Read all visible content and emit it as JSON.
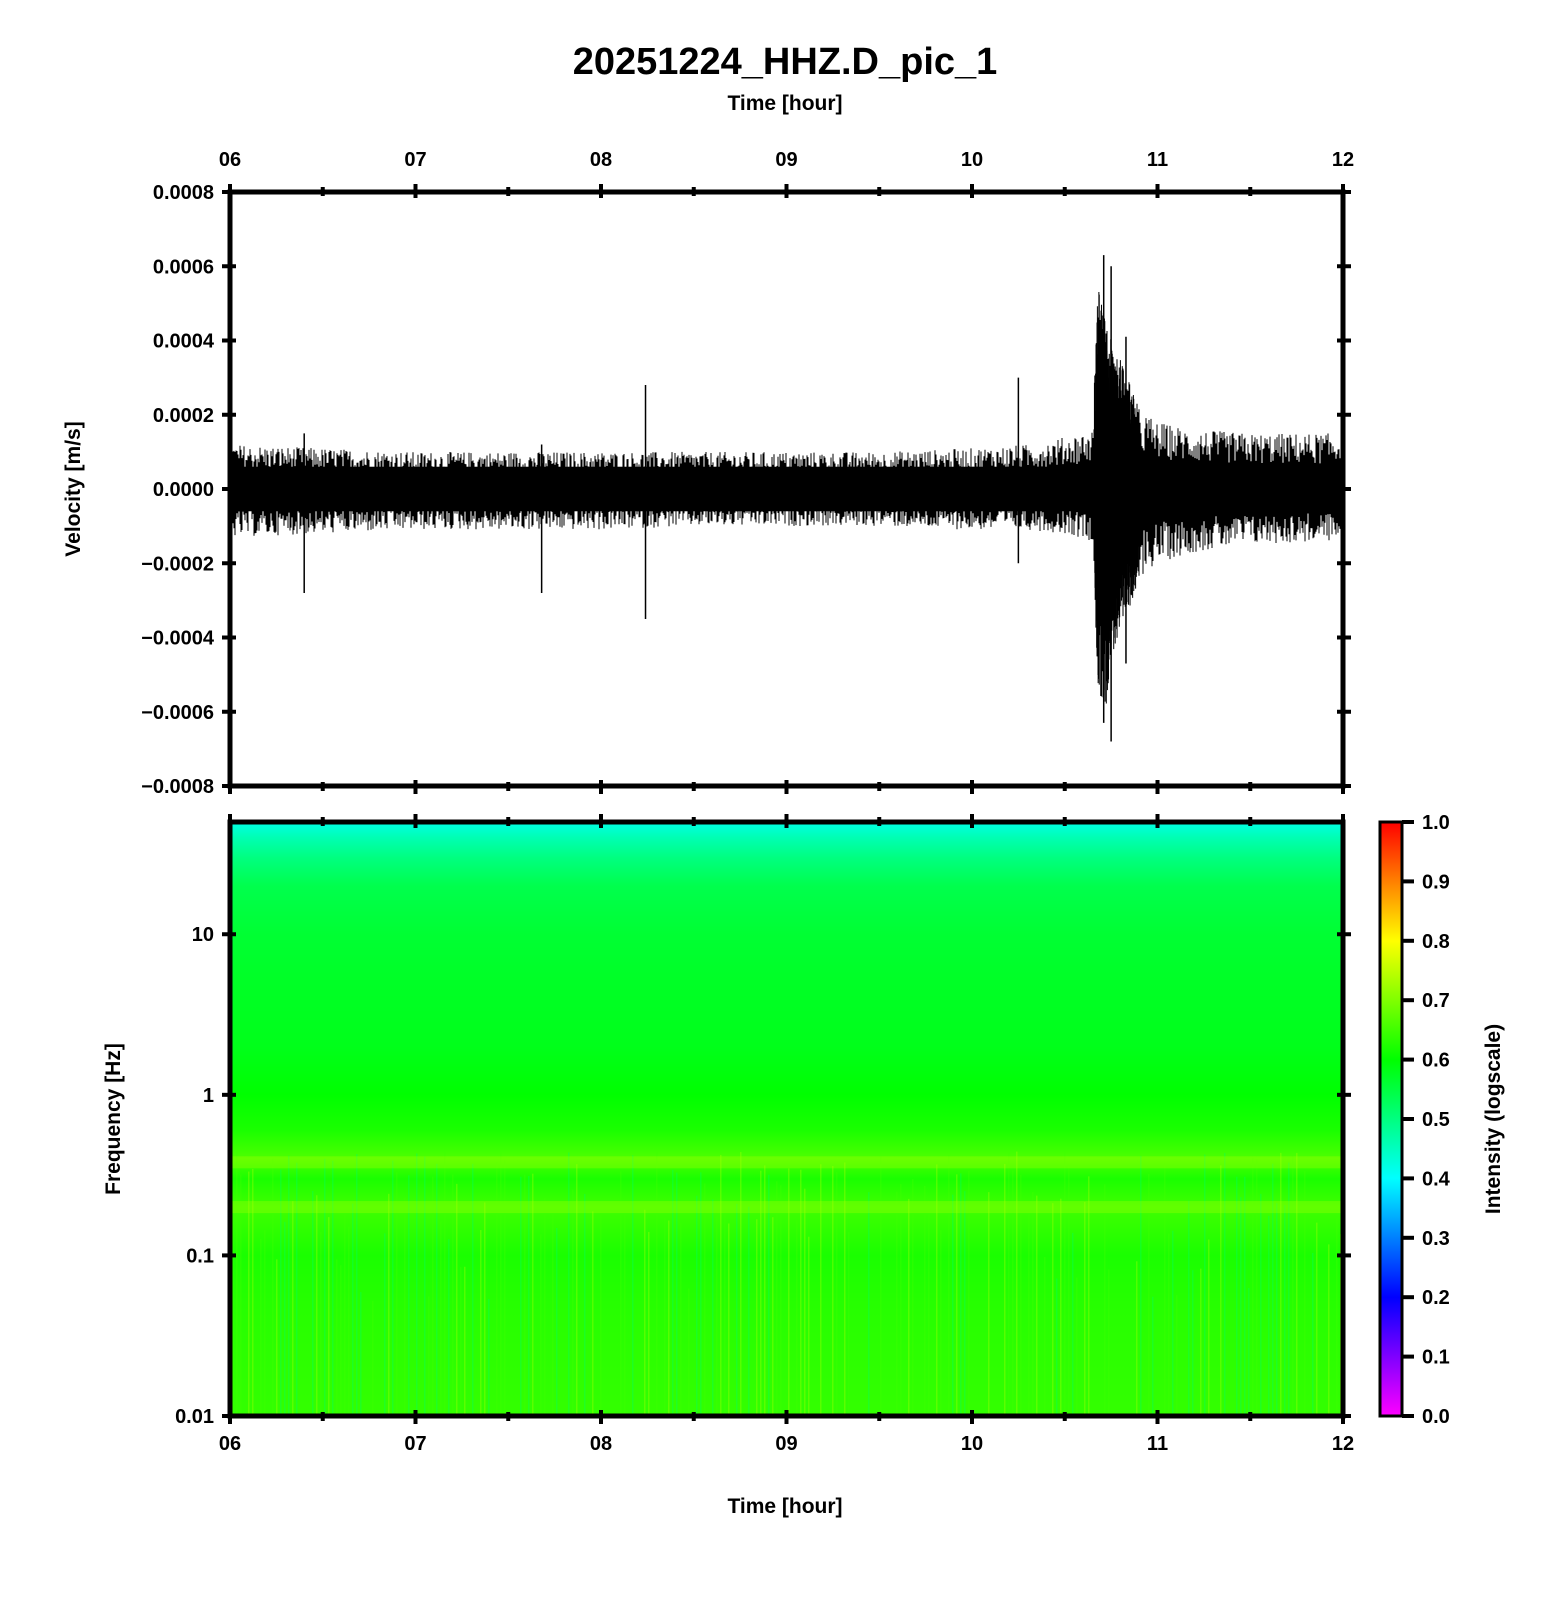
{
  "title": "20251224_HHZ.D_pic_1",
  "colors": {
    "trace": "#000000",
    "axis": "#000000",
    "background": "#ffffff",
    "colormap": [
      "#ff00ff",
      "#7f00ff",
      "#0000ff",
      "#0080ff",
      "#00ffff",
      "#00ff80",
      "#00ff00",
      "#80ff00",
      "#ffff00",
      "#ff8000",
      "#ff0000"
    ]
  },
  "chart_data": [
    {
      "type": "line",
      "name": "waveform",
      "xlabel": "Time [hour]",
      "ylabel": "Velocity [m/s]",
      "xlim": [
        6,
        12
      ],
      "ylim": [
        -0.0008,
        0.0008
      ],
      "x_ticks": [
        "06",
        "07",
        "08",
        "09",
        "10",
        "11",
        "12"
      ],
      "y_ticks": [
        "0.0008",
        "0.0006",
        "0.0004",
        "0.0002",
        "0.0000",
        "−0.0002",
        "−0.0004",
        "−0.0006",
        "−0.0008"
      ],
      "envelope": {
        "x": [
          6.0,
          6.5,
          7.0,
          7.5,
          8.0,
          8.5,
          9.0,
          9.5,
          10.0,
          10.3,
          10.5,
          10.65,
          10.68,
          10.72,
          10.75,
          10.8,
          10.9,
          11.0,
          11.2,
          11.5,
          12.0
        ],
        "upper": [
          0.00012,
          0.00011,
          0.0001,
          0.0001,
          0.0001,
          0.0001,
          0.0001,
          0.0001,
          0.00011,
          0.00012,
          0.00014,
          0.00016,
          0.00055,
          0.00045,
          0.0004,
          0.00035,
          0.00022,
          0.00018,
          0.00016,
          0.00015,
          0.00015
        ],
        "lower": [
          -0.00013,
          -0.00012,
          -0.00011,
          -0.00011,
          -0.00011,
          -0.0001,
          -0.0001,
          -0.0001,
          -0.00011,
          -0.00011,
          -0.00012,
          -0.00014,
          -0.00055,
          -0.0006,
          -0.00045,
          -0.0004,
          -0.00024,
          -0.0002,
          -0.00017,
          -0.00015,
          -0.00014
        ]
      },
      "spikes": [
        {
          "x": 8.24,
          "max": 0.00028,
          "min": -0.00035
        },
        {
          "x": 6.4,
          "max": 0.00015,
          "min": -0.00028
        },
        {
          "x": 7.68,
          "max": 0.00012,
          "min": -0.00028
        },
        {
          "x": 10.71,
          "max": 0.00063,
          "min": -0.00063
        },
        {
          "x": 10.75,
          "max": 0.0006,
          "min": -0.00068
        },
        {
          "x": 10.83,
          "max": 0.00041,
          "min": -0.00047
        },
        {
          "x": 10.25,
          "max": 0.0003,
          "min": -0.0002
        }
      ]
    },
    {
      "type": "heatmap",
      "name": "spectrogram",
      "xlabel": "Time [hour]",
      "ylabel": "Frequency [Hz]",
      "xlim": [
        6,
        12
      ],
      "ylim": [
        0.01,
        50
      ],
      "yscale": "log",
      "x_ticks": [
        "06",
        "07",
        "08",
        "09",
        "10",
        "11",
        "12"
      ],
      "y_ticks": [
        "10",
        "1",
        "0.1",
        "0.01"
      ],
      "intensity_profile": {
        "freq": [
          50,
          40,
          30,
          20,
          10,
          5,
          2,
          1,
          0.6,
          0.4,
          0.3,
          0.2,
          0.1,
          0.05,
          0.01
        ],
        "intensity": [
          0.42,
          0.46,
          0.5,
          0.54,
          0.56,
          0.57,
          0.58,
          0.6,
          0.62,
          0.66,
          0.62,
          0.65,
          0.62,
          0.63,
          0.64
        ]
      },
      "colorbar": {
        "label": "Intensity (logscale)",
        "range": [
          0,
          1
        ],
        "ticks": [
          "1.0",
          "0.9",
          "0.8",
          "0.7",
          "0.6",
          "0.5",
          "0.4",
          "0.3",
          "0.2",
          "0.1",
          "0.0"
        ]
      }
    }
  ]
}
